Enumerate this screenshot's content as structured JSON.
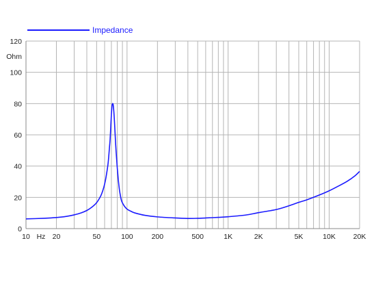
{
  "colors": {
    "series": "#1a1aff",
    "grid": "#b4b4b4",
    "axis": "#888888",
    "text": "#222222"
  },
  "chart_data": {
    "type": "line",
    "x_scale": "log",
    "xlim": [
      10,
      20000
    ],
    "ylim": [
      0,
      120
    ],
    "grid": true,
    "legend_position": "top-left",
    "y_unit_label": "Ohm",
    "x_unit_label": "Hz",
    "x_ticks": [
      {
        "value": 10,
        "label": "10"
      },
      {
        "value": 20,
        "label": "20"
      },
      {
        "value": 50,
        "label": "50"
      },
      {
        "value": 100,
        "label": "100"
      },
      {
        "value": 200,
        "label": "200"
      },
      {
        "value": 500,
        "label": "500"
      },
      {
        "value": 1000,
        "label": "1K"
      },
      {
        "value": 2000,
        "label": "2K"
      },
      {
        "value": 5000,
        "label": "5K"
      },
      {
        "value": 10000,
        "label": "10K"
      },
      {
        "value": 20000,
        "label": "20K"
      }
    ],
    "y_ticks": [
      {
        "value": 0,
        "label": "0"
      },
      {
        "value": 20,
        "label": "20"
      },
      {
        "value": 40,
        "label": "40"
      },
      {
        "value": 60,
        "label": "60"
      },
      {
        "value": 80,
        "label": "80"
      },
      {
        "value": 100,
        "label": "100"
      },
      {
        "value": 120,
        "label": "120"
      }
    ],
    "series": [
      {
        "name": "Impedance",
        "x": [
          10,
          15,
          20,
          25,
          30,
          35,
          40,
          45,
          50,
          55,
          58,
          60,
          62,
          65,
          67,
          68,
          69,
          70,
          71,
          72,
          73,
          74,
          75,
          76,
          77,
          78,
          79,
          80,
          81,
          82,
          84,
          86,
          88,
          90,
          95,
          100,
          110,
          120,
          150,
          200,
          300,
          400,
          500,
          600,
          800,
          1000,
          1500,
          2000,
          3000,
          4000,
          5000,
          6000,
          8000,
          10000,
          12000,
          15000,
          18000,
          20000
        ],
        "values": [
          6.2,
          6.6,
          7.1,
          7.8,
          8.8,
          10.0,
          11.6,
          13.8,
          16.6,
          21,
          25,
          28.5,
          33,
          42,
          52,
          57,
          65,
          73,
          78.5,
          80,
          79,
          75,
          69,
          62,
          55,
          49,
          44,
          39,
          35,
          31,
          25,
          21,
          18,
          16.5,
          14,
          12.5,
          11,
          10,
          8.5,
          7.5,
          6.8,
          6.5,
          6.6,
          6.8,
          7.2,
          7.6,
          8.7,
          10.2,
          12.2,
          14.6,
          16.8,
          18.4,
          21.5,
          24.2,
          26.8,
          30.2,
          33.8,
          36.6
        ]
      }
    ]
  }
}
